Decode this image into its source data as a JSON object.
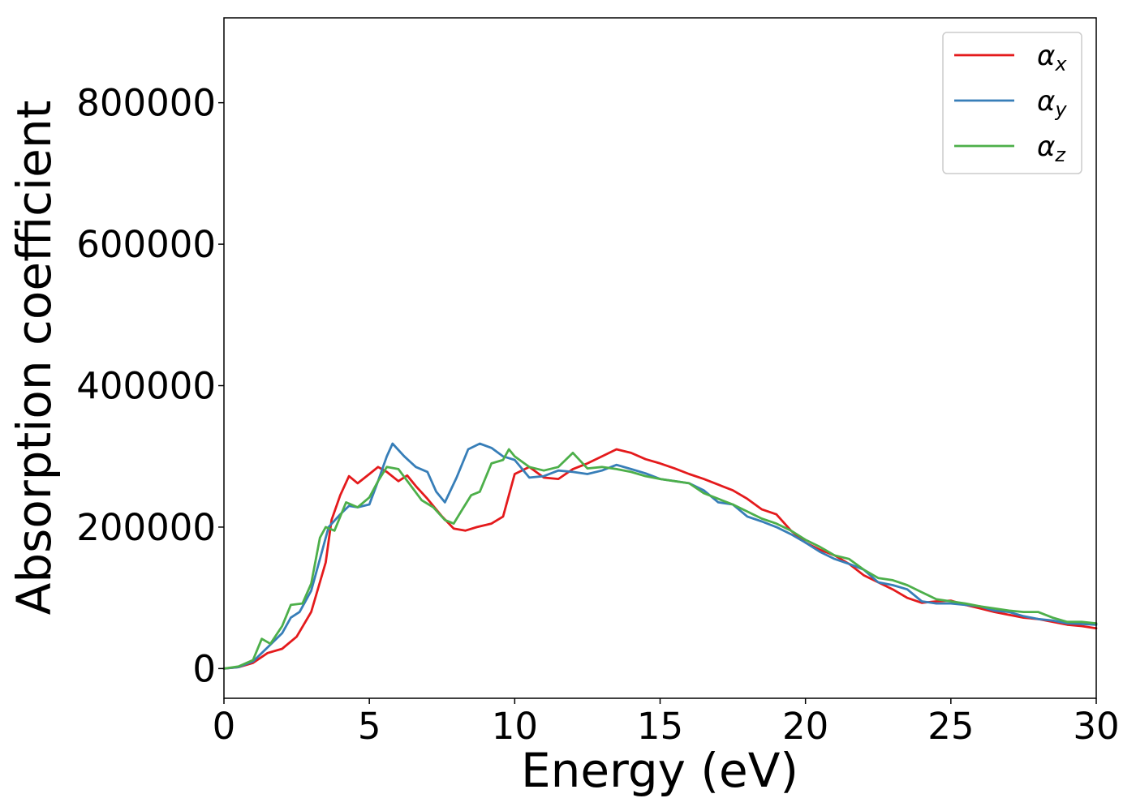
{
  "chart_data": {
    "type": "line",
    "title": "",
    "xlabel": "Energy (eV)",
    "ylabel": "Absorption coefficient",
    "xlim": [
      0,
      30
    ],
    "ylim": [
      -42000,
      920000
    ],
    "xticks": [
      0,
      5,
      10,
      15,
      20,
      25,
      30
    ],
    "xtick_labels": [
      "0",
      "5",
      "10",
      "15",
      "20",
      "25",
      "30"
    ],
    "yticks": [
      0,
      200000,
      400000,
      600000,
      800000
    ],
    "ytick_labels": [
      "0",
      "200000",
      "400000",
      "600000",
      "800000"
    ],
    "grid": false,
    "legend_position": "top-right",
    "series": [
      {
        "name": "αx",
        "symbol": "α",
        "subscript": "x",
        "color": "#e41a1c",
        "x": [
          0,
          0.5,
          1.0,
          1.5,
          2.0,
          2.5,
          3.0,
          3.5,
          3.7,
          4.0,
          4.3,
          4.6,
          5.0,
          5.3,
          5.6,
          6.0,
          6.3,
          6.6,
          7.0,
          7.5,
          7.9,
          8.3,
          8.7,
          9.2,
          9.6,
          10.0,
          10.5,
          11.0,
          11.5,
          12.0,
          12.5,
          13.0,
          13.5,
          14.0,
          14.5,
          15.0,
          15.5,
          16.0,
          16.5,
          17.0,
          17.5,
          18.0,
          18.5,
          19.0,
          19.5,
          20.0,
          20.5,
          21.0,
          21.5,
          22.0,
          22.5,
          23.0,
          23.5,
          24.0,
          24.5,
          25.0,
          25.5,
          26.0,
          26.5,
          27.0,
          27.5,
          28.0,
          28.5,
          29.0,
          29.5,
          30.0
        ],
        "y": [
          0,
          2000,
          8000,
          22000,
          28000,
          45000,
          80000,
          150000,
          210000,
          245000,
          272000,
          262000,
          275000,
          285000,
          278000,
          265000,
          273000,
          258000,
          240000,
          215000,
          198000,
          195000,
          200000,
          205000,
          215000,
          275000,
          285000,
          270000,
          268000,
          282000,
          290000,
          300000,
          310000,
          305000,
          296000,
          290000,
          283000,
          275000,
          268000,
          260000,
          252000,
          240000,
          225000,
          218000,
          195000,
          178000,
          168000,
          160000,
          148000,
          132000,
          122000,
          112000,
          100000,
          93000,
          95000,
          96000,
          90000,
          85000,
          80000,
          76000,
          72000,
          70000,
          66000,
          62000,
          60000,
          57000
        ]
      },
      {
        "name": "αy",
        "symbol": "α",
        "subscript": "y",
        "color": "#377eb8",
        "x": [
          0,
          0.5,
          1.0,
          1.5,
          2.0,
          2.3,
          2.6,
          3.0,
          3.3,
          3.6,
          4.0,
          4.3,
          4.6,
          5.0,
          5.3,
          5.6,
          5.8,
          6.2,
          6.6,
          7.0,
          7.3,
          7.6,
          8.0,
          8.4,
          8.8,
          9.2,
          9.6,
          10.0,
          10.5,
          11.0,
          11.5,
          12.0,
          12.5,
          13.0,
          13.5,
          14.0,
          14.5,
          15.0,
          15.5,
          16.0,
          16.5,
          17.0,
          17.5,
          18.0,
          18.5,
          19.0,
          19.5,
          20.0,
          20.5,
          21.0,
          21.5,
          22.0,
          22.5,
          23.0,
          23.5,
          24.0,
          24.5,
          25.0,
          25.5,
          26.0,
          26.5,
          27.0,
          27.5,
          28.0,
          28.5,
          29.0,
          29.5,
          30.0
        ],
        "y": [
          0,
          2000,
          10000,
          30000,
          50000,
          72000,
          80000,
          110000,
          155000,
          200000,
          218000,
          230000,
          228000,
          232000,
          265000,
          300000,
          318000,
          300000,
          285000,
          278000,
          250000,
          235000,
          270000,
          310000,
          318000,
          312000,
          300000,
          295000,
          270000,
          272000,
          280000,
          278000,
          275000,
          280000,
          288000,
          282000,
          276000,
          268000,
          265000,
          262000,
          252000,
          235000,
          232000,
          215000,
          208000,
          200000,
          190000,
          178000,
          165000,
          155000,
          148000,
          140000,
          122000,
          118000,
          112000,
          95000,
          92000,
          92000,
          90000,
          88000,
          82000,
          80000,
          74000,
          70000,
          68000,
          64000,
          63000,
          62000
        ]
      },
      {
        "name": "αz",
        "symbol": "α",
        "subscript": "z",
        "color": "#4daf4a",
        "x": [
          0,
          0.5,
          1.0,
          1.3,
          1.6,
          2.0,
          2.3,
          2.7,
          3.0,
          3.3,
          3.5,
          3.8,
          4.2,
          4.6,
          5.0,
          5.3,
          5.6,
          6.0,
          6.4,
          6.8,
          7.2,
          7.6,
          7.9,
          8.2,
          8.5,
          8.8,
          9.2,
          9.6,
          9.8,
          10.0,
          10.5,
          11.0,
          11.5,
          12.0,
          12.5,
          13.0,
          13.5,
          14.0,
          14.5,
          15.0,
          15.5,
          16.0,
          16.5,
          17.0,
          17.5,
          18.0,
          18.5,
          19.0,
          19.5,
          20.0,
          20.5,
          21.0,
          21.5,
          22.0,
          22.5,
          23.0,
          23.5,
          24.0,
          24.5,
          25.0,
          25.5,
          26.0,
          26.5,
          27.0,
          27.5,
          28.0,
          28.5,
          29.0,
          29.5,
          30.0
        ],
        "y": [
          0,
          3000,
          12000,
          42000,
          35000,
          60000,
          90000,
          92000,
          120000,
          185000,
          200000,
          195000,
          235000,
          228000,
          242000,
          265000,
          285000,
          282000,
          260000,
          238000,
          228000,
          210000,
          205000,
          225000,
          245000,
          250000,
          290000,
          295000,
          310000,
          300000,
          285000,
          280000,
          285000,
          305000,
          283000,
          285000,
          282000,
          278000,
          272000,
          268000,
          265000,
          262000,
          248000,
          240000,
          232000,
          222000,
          212000,
          205000,
          195000,
          182000,
          172000,
          160000,
          155000,
          140000,
          128000,
          125000,
          118000,
          108000,
          98000,
          95000,
          92000,
          88000,
          85000,
          82000,
          80000,
          80000,
          72000,
          66000,
          66000,
          64000
        ]
      }
    ]
  }
}
